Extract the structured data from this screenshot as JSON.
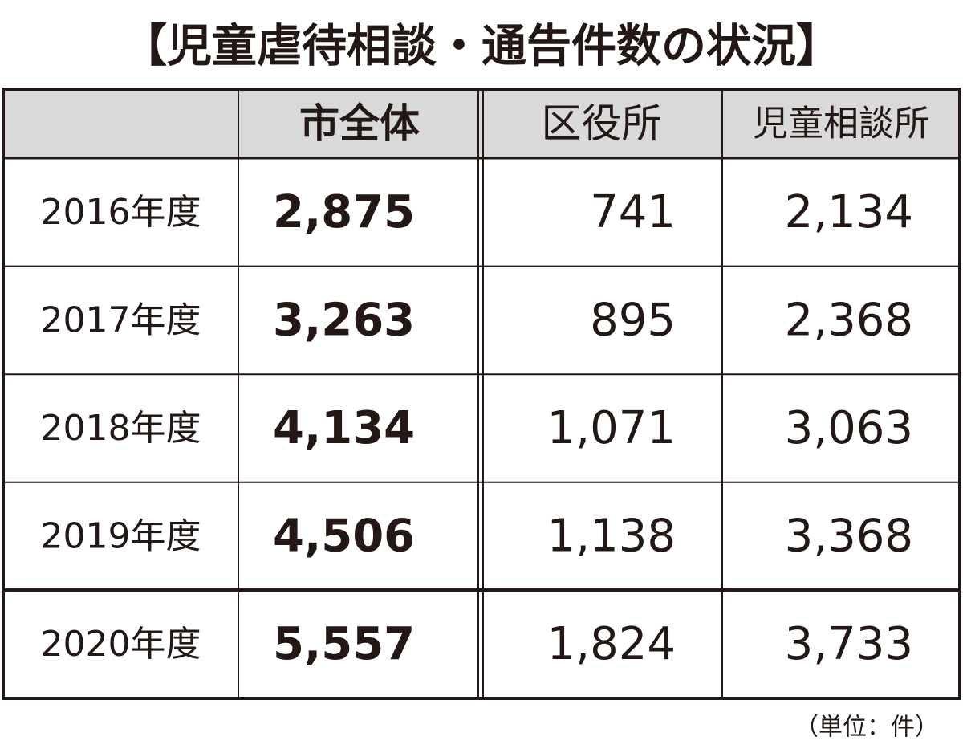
{
  "title": "【児童虐待相談・通告件数の状況】",
  "table": {
    "header": [
      "市全体",
      "区役所",
      "児童相談所"
    ],
    "rows": [
      [
        "2016年度",
        "2,875",
        "741",
        "2,134"
      ],
      [
        "2017年度",
        "3,263",
        "895",
        "2,368"
      ],
      [
        "2018年度",
        "4,134",
        "1,071",
        "3,063"
      ],
      [
        "2019年度",
        "4,506",
        "1,138",
        "3,368"
      ],
      [
        "2020年度",
        "5,557",
        "1,824",
        "3,733"
      ]
    ]
  },
  "note": "（単位：件）"
}
